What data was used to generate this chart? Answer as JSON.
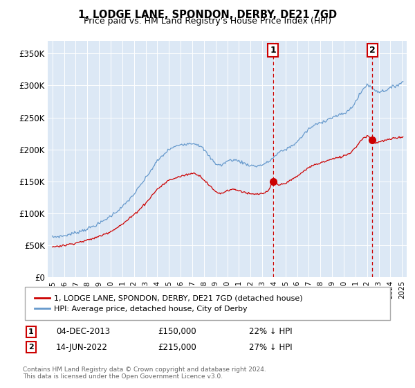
{
  "title": "1, LODGE LANE, SPONDON, DERBY, DE21 7GD",
  "subtitle": "Price paid vs. HM Land Registry's House Price Index (HPI)",
  "ylim": [
    0,
    370000
  ],
  "yticks": [
    0,
    50000,
    100000,
    150000,
    200000,
    250000,
    300000,
    350000
  ],
  "ytick_labels": [
    "£0",
    "£50K",
    "£100K",
    "£150K",
    "£200K",
    "£250K",
    "£300K",
    "£350K"
  ],
  "plot_bg_color": "#dce8f5",
  "legend_entries": [
    "1, LODGE LANE, SPONDON, DERBY, DE21 7GD (detached house)",
    "HPI: Average price, detached house, City of Derby"
  ],
  "sale1_date": 2013.92,
  "sale1_price": 150000,
  "sale1_label": "04-DEC-2013",
  "sale1_pct": "22% ↓ HPI",
  "sale2_date": 2022.45,
  "sale2_price": 215000,
  "sale2_label": "14-JUN-2022",
  "sale2_pct": "27% ↓ HPI",
  "footnote1": "Contains HM Land Registry data © Crown copyright and database right 2024.",
  "footnote2": "This data is licensed under the Open Government Licence v3.0.",
  "red_line_color": "#cc0000",
  "blue_line_color": "#6699cc",
  "marker_color": "#cc0000"
}
